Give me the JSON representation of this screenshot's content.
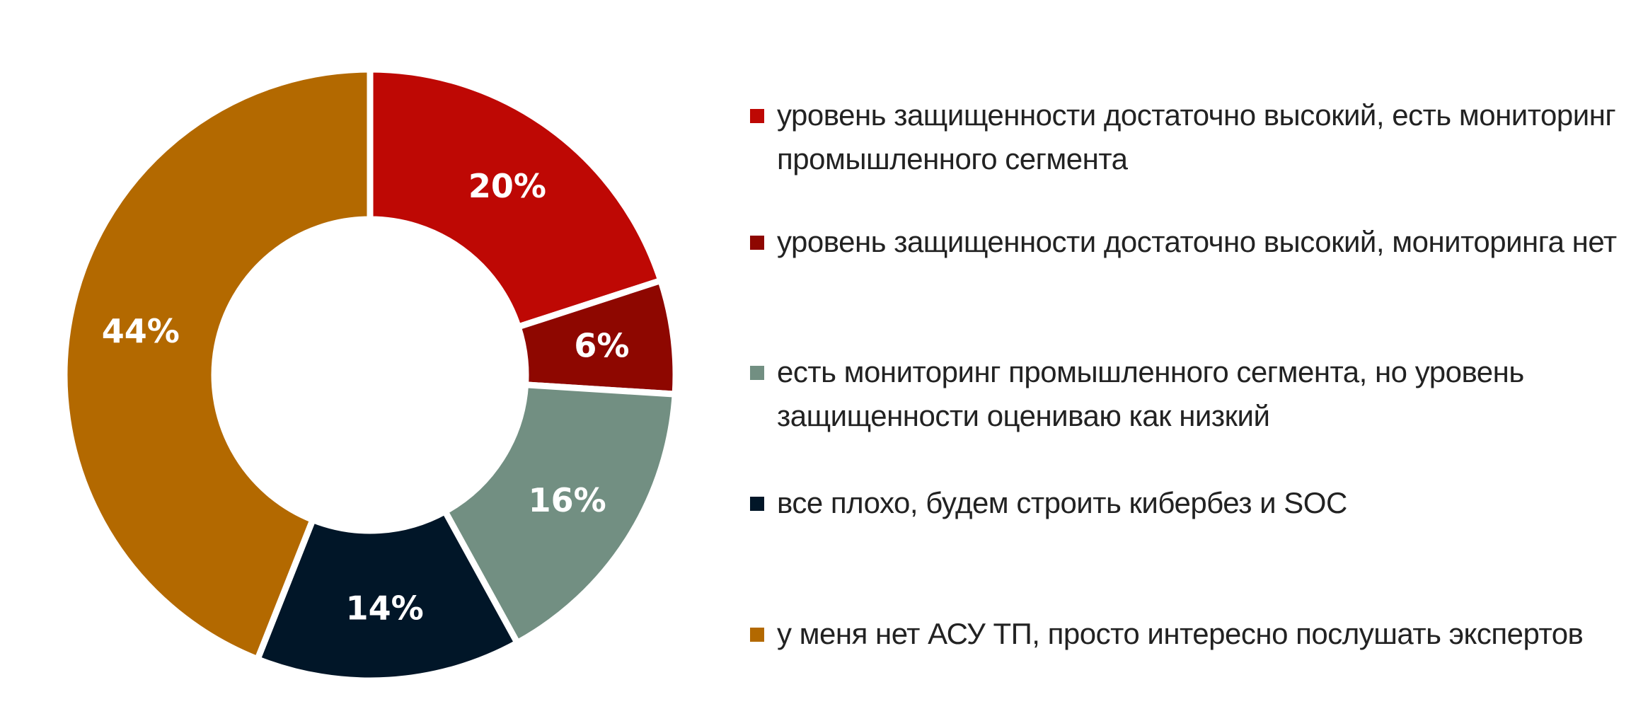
{
  "chart_data": {
    "type": "pie",
    "donut": true,
    "start": "top",
    "direction": "clockwise",
    "legend_position": "right",
    "slices": [
      {
        "label": "уровень защищенности достаточно высокий, есть мониторинг промышленного сегмента",
        "value": 20,
        "data_label": "20%",
        "color": "#BE0804"
      },
      {
        "label": "уровень защищенности достаточно высокий, мониторинга нет",
        "value": 6,
        "data_label": "6%",
        "color": "#8E0700"
      },
      {
        "label": "есть мониторинг промышленного сегмента, но уровень защищенности оцениваю  как низкий",
        "value": 16,
        "data_label": "16%",
        "color": "#728F82"
      },
      {
        "label": "все плохо, будем строить кибербез и SOC",
        "value": 14,
        "data_label": "14%",
        "color": "#011628"
      },
      {
        "label": "у меня нет АСУ ТП, просто интересно послушать экспертов",
        "value": 44,
        "data_label": "44%",
        "color": "#B36900"
      }
    ]
  }
}
